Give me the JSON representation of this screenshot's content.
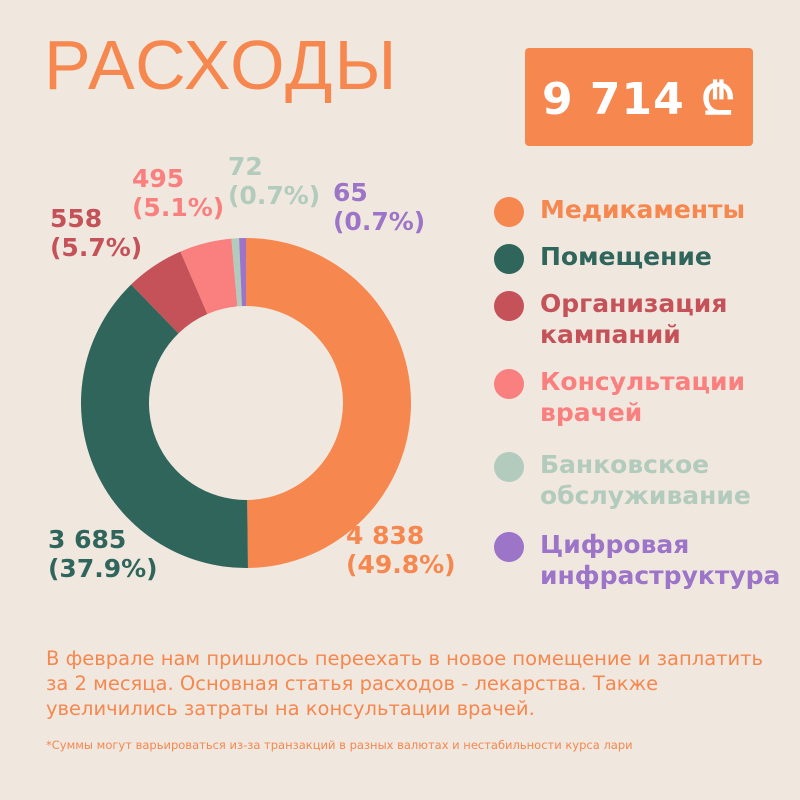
{
  "header": {
    "title": "РАСХОДЫ",
    "total": "9 714 ₾"
  },
  "chart_data": {
    "type": "pie",
    "donut": true,
    "categories": [
      "Медикаменты",
      "Помещение",
      "Организация кампаний",
      "Консультации врачей",
      "Банковское обслуживание",
      "Цифровая инфраструктура"
    ],
    "values": [
      4838,
      3685,
      558,
      495,
      72,
      65
    ],
    "value_labels": [
      "4 838",
      "3 685",
      "558",
      "495",
      "72",
      "65"
    ],
    "percent_labels": [
      "(49.8%)",
      "(37.9%)",
      "(5.7%)",
      "(5.1%)",
      "(0.7%)",
      "(0.7%)"
    ],
    "colors": [
      "#f5874f",
      "#30655c",
      "#c45258",
      "#fa7f7f",
      "#b2cbbd",
      "#9c74c8"
    ],
    "label_colors": [
      "#f5874f",
      "#30655c",
      "#c45258",
      "#fa7f7f",
      "#b2cbbd",
      "#9c74c8"
    ],
    "legend": {
      "placement": "right",
      "items": [
        {
          "label": "Медикаменты",
          "color": "#f5874f"
        },
        {
          "label": "Помещение",
          "color": "#30655c"
        },
        {
          "label": "Организация кампаний",
          "color": "#c45258"
        },
        {
          "label": "Консультации врачей",
          "color": "#fa7f7f"
        },
        {
          "label": "Банковское обслуживание",
          "color": "#b2cbbd"
        },
        {
          "label": "Цифровая инфраструктура",
          "color": "#9c74c8"
        }
      ]
    }
  },
  "note": "В феврале нам пришлось переехать в новое помещение и заплатить за 2 месяца. Основная статья расходов - лекарства. Также увеличились затраты на консультации врачей.",
  "footnote": "*Суммы могут варьироваться из-за транзакций в разных валютах и нестабильности курса лари"
}
